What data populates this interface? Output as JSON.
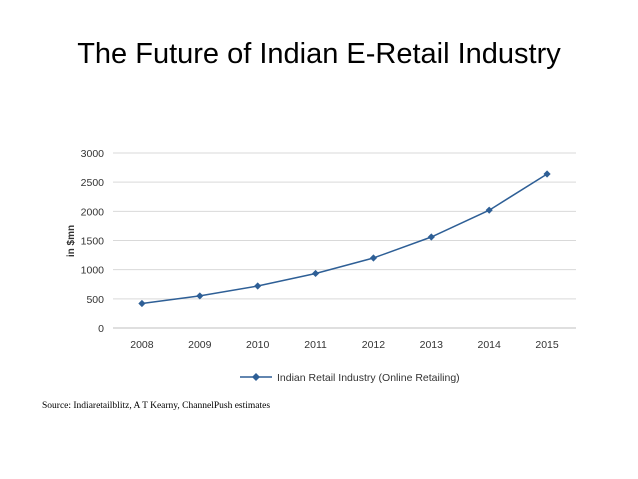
{
  "slide": {
    "title": "The Future of Indian E-Retail Industry",
    "source": "Source: Indiaretailblitz, A T Kearny, ChannelPush estimates"
  },
  "chart_data": {
    "type": "line",
    "title": "",
    "xlabel": "",
    "ylabel": "in $mn",
    "categories": [
      "2008",
      "2009",
      "2010",
      "2011",
      "2012",
      "2013",
      "2014",
      "2015"
    ],
    "series": [
      {
        "name": "Indian Retail Industry (Online Retailing)",
        "values": [
          420,
          550,
          720,
          935,
          1200,
          1560,
          2020,
          2640
        ],
        "color": "#2e5f96"
      }
    ],
    "ylim": [
      0,
      3000
    ],
    "yticks": [
      0,
      500,
      1000,
      1500,
      2000,
      2500,
      3000
    ],
    "grid": true,
    "legend": "bottom"
  }
}
